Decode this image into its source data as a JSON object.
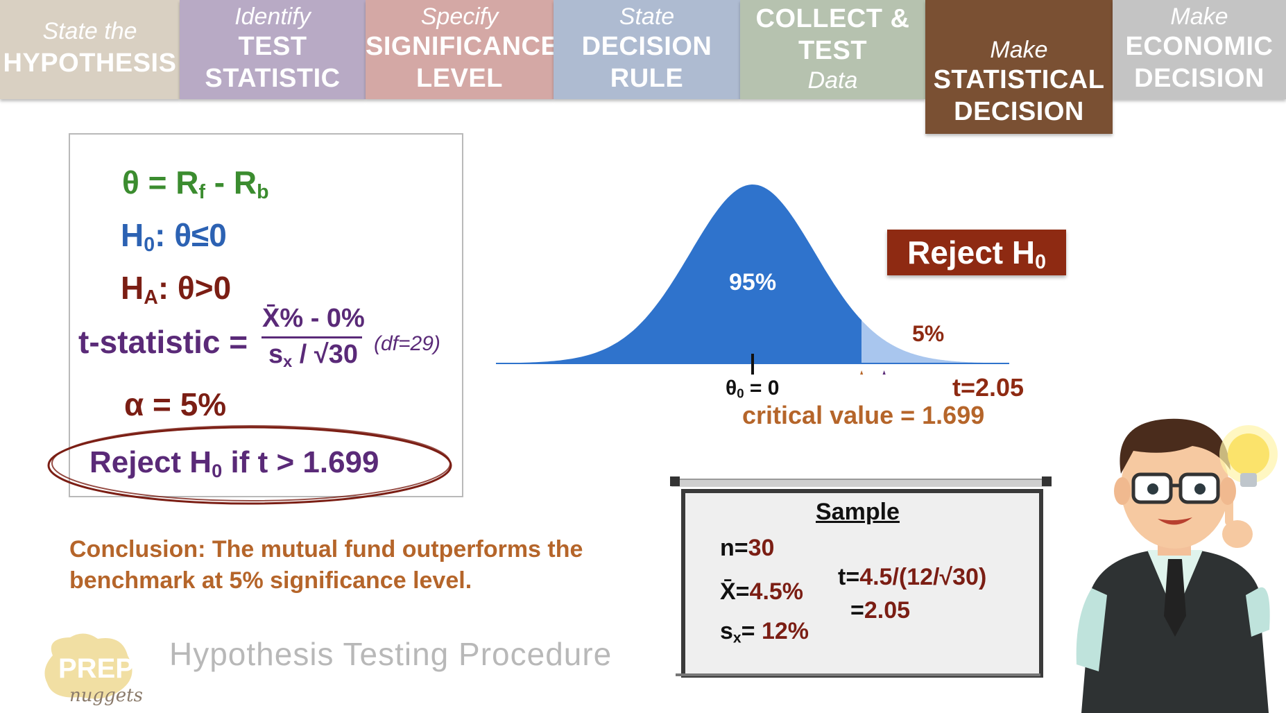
{
  "steps": [
    {
      "italic": "State the",
      "bold": "HYPOTHESIS",
      "color": "#d9d0c2"
    },
    {
      "italic": "Identify",
      "bold": "TEST",
      "bold2": "STATISTIC",
      "color": "#b8aac5"
    },
    {
      "italic": "Specify",
      "bold": "SIGNIFICANCE",
      "bold2": "LEVEL",
      "color": "#d4a8a5"
    },
    {
      "italic": "State",
      "bold": "DECISION",
      "bold2": "RULE",
      "color": "#aebbd1"
    },
    {
      "bold": "COLLECT &",
      "bold2": "TEST",
      "italic": "Data",
      "color": "#b6c2af"
    },
    {
      "italic": "Make",
      "bold": "STATISTICAL",
      "bold2": "DECISION",
      "color": "#7a5033",
      "active": true
    },
    {
      "italic": "Make",
      "bold": "ECONOMIC",
      "bold2": "DECISION",
      "color": "#c4c4c4"
    }
  ],
  "hypothesis": {
    "theta_def": {
      "lhs": "θ = R",
      "f": "f",
      "mid": " - R",
      "b": "b"
    },
    "h0": {
      "h": "H",
      "sub": "0",
      "rest": ": θ≤0"
    },
    "ha": {
      "h": "H",
      "sub": "A",
      "rest": ": θ>0"
    },
    "tstat": {
      "label": "t-statistic =",
      "numerator": "X̄% - 0%",
      "denominator_s": "s",
      "denominator_sub": "x",
      "denominator_rest": " / √30",
      "df": "(df=29)"
    },
    "alpha": "α = 5%",
    "rule": {
      "pre": "Reject H",
      "sub": "0",
      "post": " if t > 1.699"
    }
  },
  "conclusion": "Conclusion: The mutual fund outperforms the benchmark at 5% significance level.",
  "footer": {
    "title": "Hypothesis Testing Procedure",
    "logo_top": "PREP",
    "logo_bottom": "nuggets"
  },
  "chart_data": {
    "type": "area",
    "distribution": "t",
    "df": 29,
    "center_label": {
      "pre": "θ",
      "sub": "0",
      "post": " = 0"
    },
    "critical_value": 1.699,
    "critical_label": "critical value = 1.699",
    "t_value": 2.05,
    "t_label": "t=2.05",
    "regions": [
      {
        "label": "95%",
        "from": -4,
        "to": 1.699,
        "color": "#2f73cc"
      },
      {
        "label": "5%",
        "from": 1.699,
        "to": 4,
        "color": "#a9c6ee"
      }
    ],
    "critical_marker_color": "#b8672a",
    "t_marker_color": "#5a2a78",
    "xlim": [
      -4,
      4
    ]
  },
  "reject_box": {
    "pre": "Reject H",
    "sub": "0",
    "color": "#8e2a12"
  },
  "sample": {
    "title": "Sample",
    "n": {
      "label": "n=",
      "value": "30"
    },
    "xbar": {
      "label": "X̄=",
      "value": "4.5%"
    },
    "sx": {
      "label": "s",
      "sub": "x",
      "eq": "= ",
      "value": "12%"
    },
    "t_calc": {
      "label": "t=",
      "value": "4.5/(12/√30)"
    },
    "t_result": {
      "label": "=",
      "value": "2.05"
    }
  }
}
